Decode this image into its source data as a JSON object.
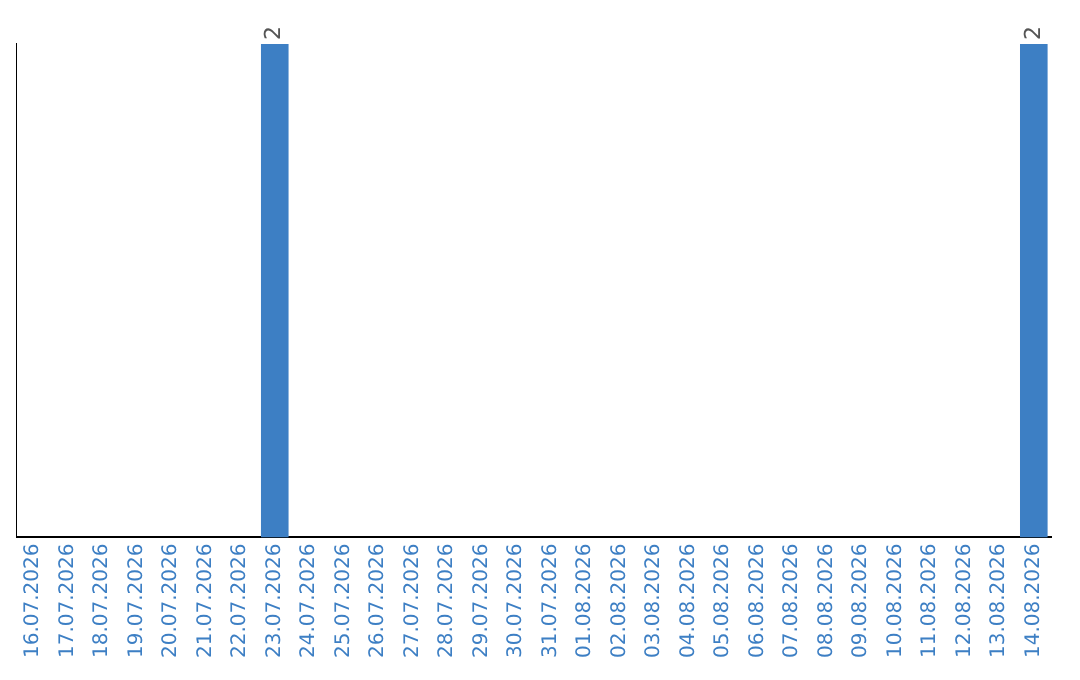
{
  "chart_data": {
    "type": "bar",
    "categories": [
      "16.07.2026",
      "17.07.2026",
      "18.07.2026",
      "19.07.2026",
      "20.07.2026",
      "21.07.2026",
      "22.07.2026",
      "23.07.2026",
      "24.07.2026",
      "25.07.2026",
      "26.07.2026",
      "27.07.2026",
      "28.07.2026",
      "29.07.2026",
      "30.07.2026",
      "31.07.2026",
      "01.08.2026",
      "02.08.2026",
      "03.08.2026",
      "04.08.2026",
      "05.08.2026",
      "06.08.2026",
      "07.08.2026",
      "08.08.2026",
      "09.08.2026",
      "10.08.2026",
      "11.08.2026",
      "12.08.2026",
      "13.08.2026",
      "14.08.2026"
    ],
    "values": [
      0,
      0,
      0,
      0,
      0,
      0,
      0,
      2,
      0,
      0,
      0,
      0,
      0,
      0,
      0,
      0,
      0,
      0,
      0,
      0,
      0,
      0,
      0,
      0,
      0,
      0,
      0,
      0,
      0,
      2
    ],
    "value_labels": [
      null,
      null,
      null,
      null,
      null,
      null,
      null,
      "2",
      null,
      null,
      null,
      null,
      null,
      null,
      null,
      null,
      null,
      null,
      null,
      null,
      null,
      null,
      null,
      null,
      null,
      null,
      null,
      null,
      null,
      "2"
    ],
    "color": "#3d7fc4",
    "grid": false,
    "legend": false,
    "tick_labels": "x"
  }
}
